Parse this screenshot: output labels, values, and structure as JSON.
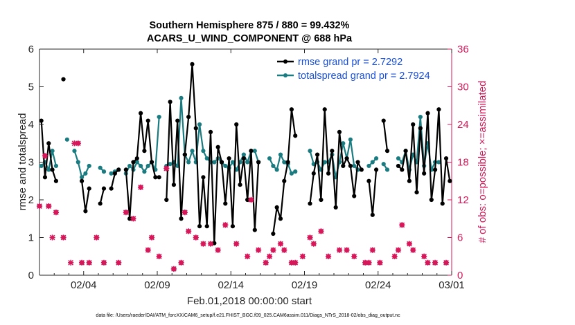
{
  "chart_data": {
    "type": "line",
    "title": "Southern Hemisphere 875 / 880 = 99.432%",
    "subtitle": "ACARS_U_WIND_COMPONENT @ 688 hPa",
    "xlabel": "Feb.01,2018 00:00:00 start",
    "ylabel": "rmse and totalspread",
    "y2label": "# of obs: o=possible; ×=assimilated",
    "footnote": "data file: /Users/raeder/DAI/ATM_forcXX/CAM6_setup/f.e21.FHIST_BGC.f09_025.CAM6assim.011/Diags_NTrS_2018-02/obs_diag_output.nc",
    "xlim": [
      1.0,
      29.0
    ],
    "ylim": [
      0,
      6
    ],
    "y2lim": [
      0,
      36
    ],
    "xticks": [
      4,
      9,
      14,
      19,
      24,
      29
    ],
    "xticklabels": [
      "02/04",
      "02/09",
      "02/14",
      "02/19",
      "02/24",
      "03/01"
    ],
    "yticks": [
      0,
      1,
      2,
      3,
      4,
      5,
      6
    ],
    "y2ticks": [
      0,
      6,
      12,
      18,
      24,
      30,
      36
    ],
    "legend_position": "top-right",
    "series": [
      {
        "name": "rmse grand pr = 2.7292",
        "color": "#000000",
        "marker": "dot",
        "segments": [
          [
            [
              1.125,
              4.1
            ],
            [
              1.375,
              2.6
            ],
            [
              1.625,
              3.5
            ],
            [
              1.875,
              2.8
            ],
            [
              2.125,
              2.5
            ]
          ],
          [
            [
              2.625,
              5.2
            ]
          ],
          [
            [
              3.875,
              2.5
            ],
            [
              4.125,
              1.7
            ],
            [
              4.375,
              2.3
            ]
          ],
          [
            [
              5.125,
              1.9
            ],
            [
              5.375,
              2.3
            ]
          ],
          [
            [
              5.875,
              2.3
            ],
            [
              6.125,
              2.7
            ],
            [
              6.375,
              2.8
            ]
          ],
          [
            [
              6.875,
              2.8
            ],
            [
              7.125,
              1.5
            ],
            [
              7.375,
              3.0
            ],
            [
              7.625,
              3.1
            ],
            [
              7.875,
              4.3
            ],
            [
              8.125,
              3.3
            ],
            [
              8.375,
              4.1
            ],
            [
              8.625,
              3.0
            ],
            [
              8.875,
              2.6
            ],
            [
              9.125,
              2.6
            ]
          ],
          [
            [
              9.625,
              2.0
            ],
            [
              9.875,
              4.6
            ],
            [
              10.125,
              2.4
            ],
            [
              10.375,
              4.1
            ],
            [
              10.625,
              1.5
            ],
            [
              10.875,
              3.2
            ],
            [
              11.125,
              4.2
            ],
            [
              11.375,
              5.6
            ],
            [
              11.625,
              3.9
            ],
            [
              11.875,
              1.3
            ],
            [
              12.125,
              2.6
            ],
            [
              12.375,
              1.3
            ],
            [
              12.625,
              3.8
            ],
            [
              12.875,
              0.85
            ],
            [
              13.125,
              3.4
            ],
            [
              13.375,
              3.0
            ],
            [
              13.625,
              1.9
            ],
            [
              13.875,
              3.1
            ],
            [
              14.125,
              1.3
            ],
            [
              14.375,
              4.0
            ],
            [
              14.625,
              2.4
            ],
            [
              14.875,
              3.1
            ],
            [
              15.125,
              2.0
            ],
            [
              15.375,
              3.3
            ],
            [
              15.625,
              1.2
            ],
            [
              15.875,
              3.0
            ]
          ],
          [
            [
              16.875,
              1.1
            ],
            [
              17.125,
              1.8
            ],
            [
              17.375,
              1.5
            ],
            [
              17.625,
              2.5
            ],
            [
              17.875,
              3.0
            ],
            [
              18.125,
              4.4
            ],
            [
              18.375,
              3.7
            ]
          ],
          [
            [
              19.375,
              1.9
            ],
            [
              19.625,
              2.7
            ],
            [
              19.875,
              3.2
            ],
            [
              20.125,
              2.0
            ],
            [
              20.375,
              4.4
            ],
            [
              20.625,
              2.7
            ],
            [
              20.875,
              3.3
            ],
            [
              21.125,
              1.8
            ],
            [
              21.375,
              3.8
            ],
            [
              21.625,
              2.9
            ],
            [
              21.875,
              3.1
            ],
            [
              22.125,
              2.9
            ],
            [
              22.375,
              2.1
            ],
            [
              22.625,
              3.0
            ],
            [
              22.875,
              2.8
            ]
          ],
          [
            [
              23.375,
              2.5
            ],
            [
              23.625,
              1.6
            ],
            [
              23.875,
              2.8
            ]
          ],
          [
            [
              24.375,
              4.1
            ],
            [
              24.625,
              3.3
            ]
          ],
          [
            [
              25.375,
              2.9
            ],
            [
              25.625,
              2.8
            ],
            [
              25.875,
              3.3
            ],
            [
              26.125,
              2.5
            ],
            [
              26.375,
              4.0
            ],
            [
              26.625,
              2.2
            ],
            [
              26.875,
              3.9
            ],
            [
              27.125,
              2.7
            ],
            [
              27.375,
              4.3
            ],
            [
              27.625,
              2.0
            ],
            [
              27.875,
              2.8
            ],
            [
              28.125,
              4.4
            ],
            [
              28.375,
              1.9
            ],
            [
              28.625,
              3.1
            ],
            [
              28.875,
              2.5
            ]
          ]
        ]
      },
      {
        "name": "totalspread grand pr = 2.7924",
        "color": "#1a7c80",
        "marker": "dot",
        "segments": [
          [
            [
              1.125,
              2.9
            ],
            [
              1.375,
              3.0
            ],
            [
              1.625,
              2.8
            ],
            [
              1.875,
              3.3
            ],
            [
              2.125,
              2.9
            ]
          ],
          [
            [
              2.875,
              3.6
            ]
          ],
          [
            [
              3.375,
              3.3
            ],
            [
              3.625,
              3.0
            ],
            [
              3.875,
              2.6
            ],
            [
              4.125,
              2.7
            ],
            [
              4.375,
              2.9
            ]
          ],
          [
            [
              5.125,
              2.85
            ],
            [
              5.375,
              2.75
            ]
          ],
          [
            [
              5.875,
              2.7
            ],
            [
              6.125,
              2.75
            ],
            [
              6.375,
              2.8
            ]
          ],
          [
            [
              6.875,
              2.7
            ],
            [
              7.125,
              2.9
            ],
            [
              7.375,
              2.8
            ],
            [
              7.625,
              3.0
            ],
            [
              7.875,
              2.9
            ],
            [
              8.125,
              2.75
            ],
            [
              8.375,
              2.9
            ],
            [
              8.625,
              3.0
            ],
            [
              8.875,
              2.8
            ],
            [
              9.125,
              4.2
            ]
          ],
          [
            [
              9.625,
              2.9
            ],
            [
              9.875,
              2.95
            ],
            [
              10.125,
              3.0
            ],
            [
              10.375,
              2.9
            ],
            [
              10.625,
              4.7
            ],
            [
              10.875,
              3.2
            ],
            [
              11.125,
              3.0
            ],
            [
              11.375,
              3.3
            ],
            [
              11.625,
              3.0
            ],
            [
              11.875,
              4.0
            ],
            [
              12.125,
              3.3
            ],
            [
              12.375,
              3.1
            ],
            [
              12.625,
              3.0
            ],
            [
              12.875,
              3.0
            ],
            [
              13.125,
              3.1
            ],
            [
              13.375,
              3.0
            ],
            [
              13.625,
              2.9
            ],
            [
              13.875,
              2.85
            ],
            [
              14.125,
              3.0
            ],
            [
              14.375,
              2.8
            ],
            [
              14.625,
              3.0
            ],
            [
              14.875,
              3.2
            ],
            [
              15.125,
              3.0
            ],
            [
              15.375,
              3.3
            ],
            [
              15.625,
              3.3
            ],
            [
              15.875,
              3.0
            ]
          ],
          [
            [
              16.625,
              3.1
            ],
            [
              16.875,
              2.9
            ],
            [
              17.125,
              2.8
            ],
            [
              17.375,
              3.2
            ],
            [
              17.625,
              3.0
            ],
            [
              17.875,
              2.95
            ],
            [
              18.125,
              2.7
            ],
            [
              18.375,
              2.75
            ]
          ],
          [
            [
              19.375,
              3.3
            ],
            [
              19.625,
              2.95
            ],
            [
              19.875,
              3.0
            ],
            [
              20.125,
              2.8
            ],
            [
              20.375,
              3.0
            ],
            [
              20.625,
              3.0
            ],
            [
              20.875,
              3.2
            ],
            [
              21.125,
              2.6
            ],
            [
              21.375,
              3.0
            ],
            [
              21.625,
              3.5
            ],
            [
              21.875,
              3.1
            ],
            [
              22.125,
              3.6
            ],
            [
              22.375,
              2.9
            ],
            [
              22.625,
              2.8
            ]
          ],
          [
            [
              23.375,
              2.9
            ],
            [
              23.625,
              3.0
            ],
            [
              23.875,
              3.1
            ]
          ],
          [
            [
              24.375,
              2.95
            ],
            [
              24.625,
              2.8
            ]
          ],
          [
            [
              25.375,
              3.1
            ],
            [
              25.625,
              3.0
            ],
            [
              25.875,
              3.3
            ],
            [
              26.125,
              2.8
            ],
            [
              26.375,
              3.2
            ],
            [
              26.625,
              3.0
            ],
            [
              26.875,
              4.2
            ],
            [
              27.125,
              2.9
            ],
            [
              27.375,
              3.5
            ],
            [
              27.625,
              2.8
            ],
            [
              27.875,
              3.0
            ],
            [
              28.125,
              3.0
            ]
          ]
        ]
      }
    ],
    "obs_possible": [
      [
        1,
        11
      ],
      [
        1.375,
        19
      ],
      [
        1.625,
        11
      ],
      [
        2.125,
        10
      ],
      [
        2.625,
        6
      ],
      [
        3.625,
        21
      ],
      [
        3.875,
        2
      ],
      [
        4.375,
        2
      ],
      [
        4.875,
        6
      ],
      [
        5.375,
        2
      ],
      [
        6.375,
        2
      ],
      [
        6.875,
        10
      ],
      [
        7.375,
        9
      ],
      [
        7.875,
        14
      ],
      [
        8.375,
        4
      ],
      [
        8.625,
        6
      ],
      [
        9.125,
        3
      ],
      [
        9.625,
        17
      ],
      [
        10.125,
        1
      ],
      [
        10.625,
        2
      ],
      [
        10.875,
        10
      ],
      [
        11.125,
        7
      ],
      [
        11.625,
        6
      ],
      [
        12.125,
        5
      ],
      [
        12.625,
        5
      ],
      [
        13.125,
        4
      ],
      [
        13.625,
        8
      ],
      [
        14.375,
        5
      ],
      [
        15.125,
        3
      ],
      [
        15.375,
        12
      ],
      [
        15.875,
        4
      ],
      [
        16.375,
        2
      ],
      [
        16.625,
        3
      ],
      [
        16.875,
        4
      ],
      [
        17.375,
        5
      ],
      [
        17.625,
        4
      ],
      [
        18.125,
        2
      ],
      [
        18.375,
        2
      ],
      [
        18.875,
        3
      ],
      [
        19.375,
        6
      ],
      [
        19.625,
        5
      ],
      [
        20.125,
        7
      ],
      [
        20.625,
        3
      ],
      [
        21.375,
        4
      ],
      [
        21.875,
        4
      ],
      [
        22.375,
        3
      ],
      [
        23.125,
        2
      ],
      [
        23.375,
        2
      ],
      [
        23.625,
        4
      ],
      [
        24.125,
        2
      ],
      [
        25.125,
        3
      ],
      [
        25.375,
        4
      ],
      [
        25.625,
        8
      ],
      [
        26.125,
        5
      ],
      [
        26.375,
        4
      ],
      [
        27.125,
        3
      ],
      [
        27.375,
        2
      ],
      [
        27.875,
        2
      ],
      [
        28.625,
        2
      ]
    ],
    "obs_assimilated": [
      [
        1,
        11
      ],
      [
        1.375,
        19
      ],
      [
        1.625,
        11
      ],
      [
        1.875,
        6
      ],
      [
        2.125,
        10
      ],
      [
        2.625,
        6
      ],
      [
        3.125,
        2
      ],
      [
        3.375,
        21
      ],
      [
        3.625,
        21
      ],
      [
        3.875,
        2
      ],
      [
        4.375,
        2
      ],
      [
        4.875,
        6
      ],
      [
        5.375,
        2
      ],
      [
        6.375,
        2
      ],
      [
        6.875,
        10
      ],
      [
        7.375,
        9
      ],
      [
        7.875,
        14
      ],
      [
        8.375,
        4
      ],
      [
        8.625,
        6
      ],
      [
        9.125,
        3
      ],
      [
        9.625,
        17
      ],
      [
        10.125,
        1
      ],
      [
        10.625,
        2
      ],
      [
        10.875,
        10
      ],
      [
        11.125,
        7
      ],
      [
        11.625,
        6
      ],
      [
        12.125,
        5
      ],
      [
        12.625,
        5
      ],
      [
        13.125,
        4
      ],
      [
        13.625,
        8
      ],
      [
        14.375,
        5
      ],
      [
        15.125,
        3
      ],
      [
        15.375,
        12
      ],
      [
        15.875,
        4
      ],
      [
        16.375,
        2
      ],
      [
        16.625,
        3
      ],
      [
        16.875,
        4
      ],
      [
        17.375,
        5
      ],
      [
        17.625,
        4
      ],
      [
        18.125,
        2
      ],
      [
        18.375,
        2
      ],
      [
        18.875,
        3
      ],
      [
        19.375,
        6
      ],
      [
        19.625,
        5
      ],
      [
        20.125,
        7
      ],
      [
        20.625,
        3
      ],
      [
        21.375,
        4
      ],
      [
        21.875,
        4
      ],
      [
        22.375,
        3
      ],
      [
        23.125,
        2
      ],
      [
        23.375,
        2
      ],
      [
        23.625,
        4
      ],
      [
        24.125,
        2
      ],
      [
        25.125,
        3
      ],
      [
        25.375,
        4
      ],
      [
        25.625,
        8
      ],
      [
        26.125,
        5
      ],
      [
        26.375,
        4
      ],
      [
        27.125,
        3
      ],
      [
        27.375,
        2
      ],
      [
        27.875,
        2
      ],
      [
        28.625,
        2
      ]
    ],
    "possible_marker_color": "#d6185a",
    "spine_color": "#262626"
  }
}
